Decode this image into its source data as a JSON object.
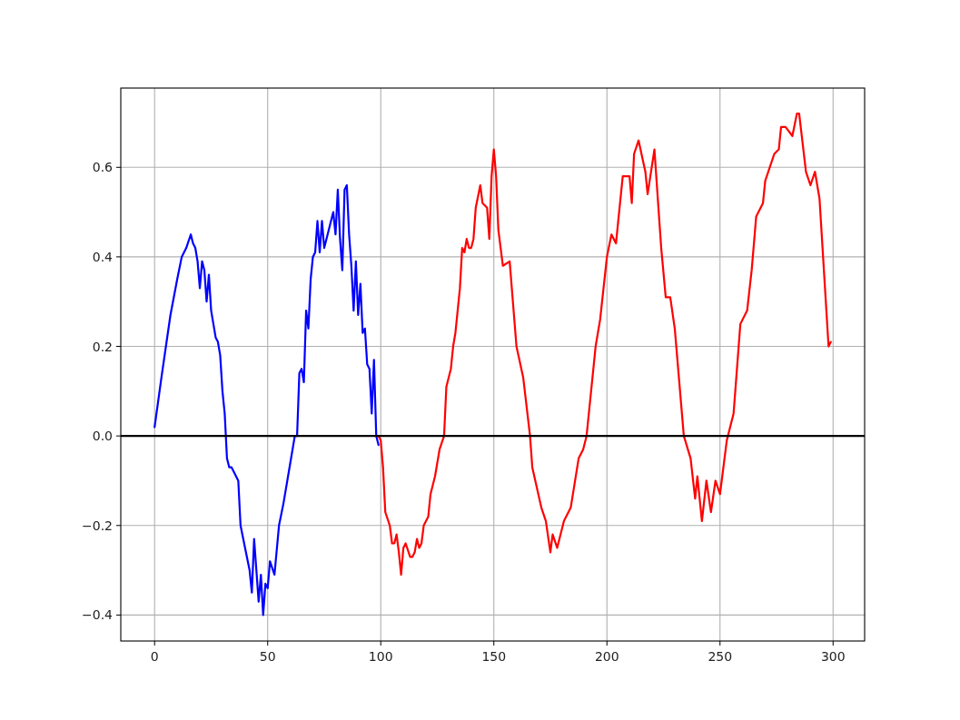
{
  "chart_data": {
    "type": "line",
    "xlim": [
      -14.95,
      313.95
    ],
    "ylim": [
      -0.458,
      0.777
    ],
    "xticks": [
      0,
      50,
      100,
      150,
      200,
      250,
      300
    ],
    "yticks": [
      {
        "value": -0.4,
        "label": "−0.4"
      },
      {
        "value": -0.2,
        "label": "−0.2"
      },
      {
        "value": 0,
        "label": "0.0"
      },
      {
        "value": 0.2,
        "label": "0.2"
      },
      {
        "value": 0.4,
        "label": "0.4"
      },
      {
        "value": 0.6,
        "label": "0.6"
      }
    ],
    "grid": true,
    "ref_lines": [
      {
        "axis": "y",
        "value": 0,
        "color": "#000000"
      }
    ],
    "series": [
      {
        "color": "#0000ff",
        "x": [
          0,
          3,
          5,
          7,
          10,
          12,
          14,
          16,
          17,
          18,
          19,
          20,
          21,
          22,
          23,
          24,
          25,
          26,
          27,
          28,
          29,
          30,
          31,
          32,
          33,
          34,
          35,
          36,
          37,
          38,
          40,
          42,
          43,
          44,
          45,
          46,
          47,
          48,
          49,
          50,
          51,
          53,
          55,
          57,
          58,
          60,
          62,
          63,
          64,
          65,
          66,
          67,
          68,
          69,
          70,
          71,
          72,
          73,
          74,
          75,
          77,
          79,
          80,
          81,
          82,
          83,
          84,
          85,
          86,
          87,
          88,
          89,
          90,
          91,
          92,
          93,
          94,
          95,
          96,
          97,
          98,
          99
        ],
        "values": [
          0.02,
          0.13,
          0.2,
          0.27,
          0.35,
          0.4,
          0.42,
          0.45,
          0.43,
          0.42,
          0.39,
          0.33,
          0.39,
          0.37,
          0.3,
          0.36,
          0.28,
          0.25,
          0.22,
          0.21,
          0.18,
          0.1,
          0.05,
          -0.05,
          -0.07,
          -0.07,
          -0.08,
          -0.09,
          -0.1,
          -0.2,
          -0.25,
          -0.3,
          -0.35,
          -0.23,
          -0.3,
          -0.37,
          -0.31,
          -0.4,
          -0.33,
          -0.34,
          -0.28,
          -0.31,
          -0.2,
          -0.15,
          -0.12,
          -0.06,
          0,
          0,
          0.14,
          0.15,
          0.12,
          0.28,
          0.24,
          0.35,
          0.4,
          0.41,
          0.48,
          0.41,
          0.48,
          0.42,
          0.46,
          0.5,
          0.45,
          0.55,
          0.44,
          0.37,
          0.55,
          0.56,
          0.45,
          0.38,
          0.28,
          0.39,
          0.27,
          0.34,
          0.23,
          0.24,
          0.16,
          0.15,
          0.05,
          0.17,
          0,
          -0.02
        ]
      },
      {
        "color": "#ff0000",
        "x": [
          99,
          100,
          101,
          102,
          104,
          105,
          106,
          107,
          108,
          109,
          110,
          111,
          113,
          114,
          115,
          116,
          117,
          118,
          119,
          121,
          122,
          124,
          126,
          128,
          129,
          131,
          132,
          133,
          135,
          136,
          137,
          138,
          139,
          140,
          141,
          142,
          144,
          145,
          147,
          148,
          149,
          150,
          151,
          152,
          154,
          157,
          160,
          163,
          166,
          167,
          171,
          173,
          175,
          176,
          178,
          181,
          184,
          187.5,
          189.5,
          191,
          195,
          197,
          200,
          202,
          204,
          207,
          210,
          211,
          212,
          214,
          217,
          218,
          221,
          224,
          226,
          228,
          230,
          234,
          237,
          239,
          240,
          242,
          244,
          246,
          248,
          250,
          253,
          256,
          259,
          262,
          264,
          266,
          269,
          270,
          274,
          276,
          277,
          279,
          282,
          284,
          285,
          288,
          290,
          292,
          294,
          298,
          299
        ],
        "values": [
          0,
          -0.01,
          -0.07,
          -0.17,
          -0.2,
          -0.24,
          -0.24,
          -0.22,
          -0.26,
          -0.31,
          -0.25,
          -0.24,
          -0.27,
          -0.27,
          -0.26,
          -0.23,
          -0.25,
          -0.24,
          -0.2,
          -0.18,
          -0.13,
          -0.09,
          -0.03,
          0,
          0.11,
          0.15,
          0.2,
          0.23,
          0.33,
          0.42,
          0.41,
          0.44,
          0.42,
          0.42,
          0.44,
          0.51,
          0.56,
          0.52,
          0.51,
          0.44,
          0.58,
          0.64,
          0.58,
          0.46,
          0.38,
          0.39,
          0.2,
          0.13,
          0,
          -0.07,
          -0.16,
          -0.19,
          -0.26,
          -0.22,
          -0.25,
          -0.19,
          -0.16,
          -0.05,
          -0.03,
          0,
          0.2,
          0.26,
          0.4,
          0.45,
          0.43,
          0.58,
          0.58,
          0.52,
          0.63,
          0.66,
          0.59,
          0.54,
          0.64,
          0.42,
          0.31,
          0.31,
          0.24,
          0,
          -0.05,
          -0.14,
          -0.09,
          -0.19,
          -0.1,
          -0.17,
          -0.1,
          -0.13,
          -0.01,
          0.05,
          0.25,
          0.28,
          0.37,
          0.49,
          0.52,
          0.57,
          0.63,
          0.64,
          0.69,
          0.69,
          0.67,
          0.72,
          0.72,
          0.59,
          0.56,
          0.59,
          0.53,
          0.2,
          0.21
        ]
      }
    ]
  }
}
